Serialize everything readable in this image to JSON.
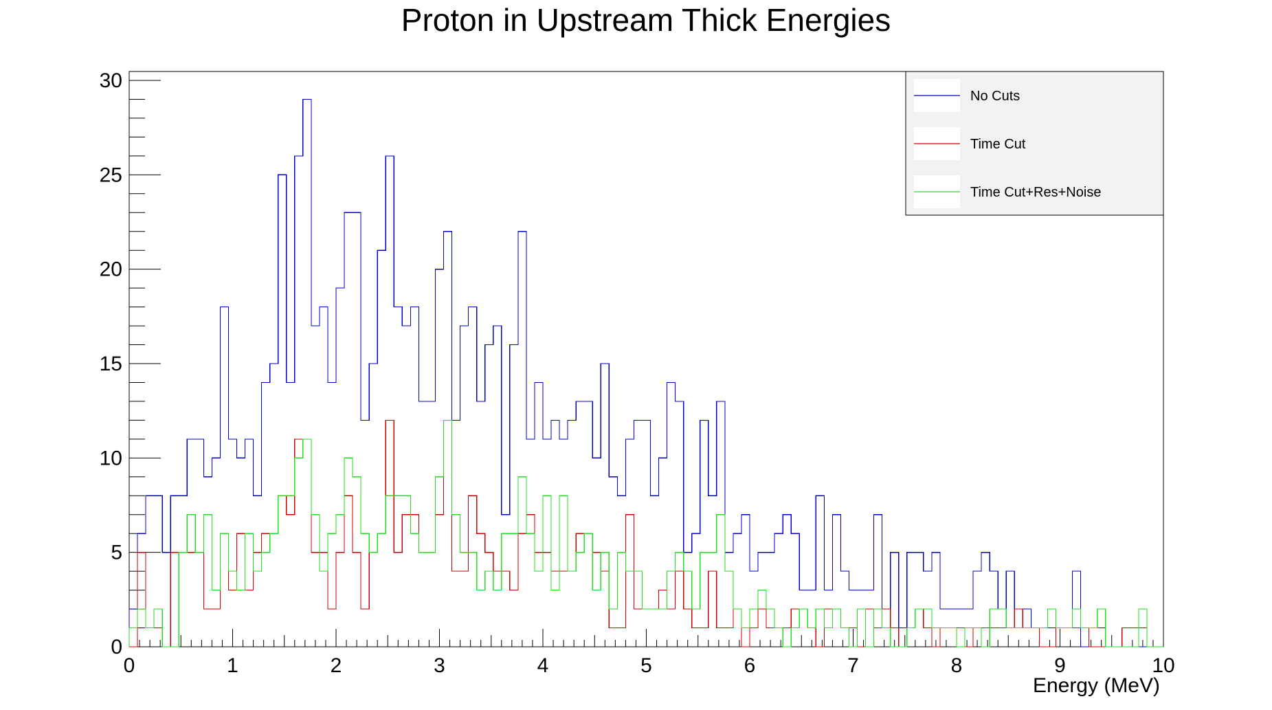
{
  "chart_data": {
    "type": "histogram",
    "title": "Proton in Upstream Thick Energies",
    "xlabel": "Energy (MeV)",
    "ylabel": "",
    "xlim": [
      0,
      10
    ],
    "ylim": [
      0,
      30
    ],
    "bin_width": 0.08,
    "x_ticks": [
      "0",
      "1",
      "2",
      "3",
      "4",
      "5",
      "6",
      "7",
      "8",
      "9",
      "10"
    ],
    "y_ticks": [
      "0",
      "5",
      "10",
      "15",
      "20",
      "25",
      "30"
    ],
    "grid": false,
    "legend_position": "top-right",
    "series": [
      {
        "name": "No Cuts",
        "color": "#0000cc",
        "values": [
          2,
          6,
          8,
          8,
          5,
          8,
          8,
          11,
          11,
          9,
          10,
          18,
          11,
          10,
          11,
          8,
          14,
          15,
          25,
          14,
          26,
          29,
          17,
          18,
          14,
          19,
          23,
          23,
          12,
          15,
          21,
          26,
          18,
          17,
          18,
          13,
          13,
          20,
          22,
          12,
          17,
          18,
          13,
          16,
          17,
          7,
          16,
          22,
          11,
          14,
          11,
          12,
          11,
          12,
          13,
          13,
          10,
          15,
          9,
          8,
          11,
          12,
          12,
          8,
          10,
          14,
          13,
          5,
          6,
          12,
          8,
          13,
          5,
          6,
          7,
          4,
          5,
          5,
          6,
          7,
          6,
          3,
          3,
          8,
          3,
          7,
          4,
          3,
          3,
          3,
          7,
          1,
          5,
          1,
          5,
          5,
          4,
          5,
          2,
          2,
          2,
          2,
          4,
          5,
          4,
          2,
          4,
          2,
          2,
          1,
          1,
          1,
          1,
          1,
          4,
          0,
          1,
          1,
          0,
          0,
          1,
          1,
          0,
          0,
          0
        ]
      },
      {
        "name": "Time Cut",
        "color": "#cc0000",
        "values": [
          0,
          5,
          1,
          1,
          0,
          5,
          5,
          5,
          5,
          2,
          2,
          6,
          3,
          6,
          3,
          5,
          6,
          6,
          8,
          7,
          11,
          11,
          5,
          5,
          2,
          5,
          8,
          5,
          2,
          5,
          6,
          12,
          5,
          7,
          7,
          5,
          5,
          7,
          12,
          4,
          4,
          8,
          6,
          5,
          4,
          4,
          3,
          6,
          7,
          5,
          5,
          4,
          4,
          4,
          6,
          6,
          5,
          4,
          1,
          1,
          7,
          2,
          2,
          2,
          3,
          2,
          4,
          2,
          1,
          1,
          4,
          1,
          1,
          2,
          0,
          1,
          2,
          1,
          1,
          1,
          2,
          2,
          1,
          0,
          2,
          2,
          1,
          1,
          0,
          2,
          1,
          2,
          1,
          0,
          1,
          2,
          1,
          0,
          1,
          1,
          1,
          0,
          1,
          1,
          1,
          1,
          1,
          2,
          1,
          1,
          0,
          0,
          1,
          1,
          1,
          1,
          0,
          0,
          0,
          0,
          1,
          1,
          1,
          0,
          0
        ]
      },
      {
        "name": "Time Cut+Res+Noise",
        "color": "#22dd22",
        "values": [
          1,
          2,
          1,
          2,
          0,
          0,
          5,
          7,
          5,
          7,
          3,
          6,
          4,
          3,
          6,
          4,
          5,
          6,
          8,
          8,
          10,
          11,
          7,
          4,
          6,
          7,
          10,
          9,
          6,
          5,
          6,
          8,
          8,
          8,
          6,
          5,
          5,
          9,
          12,
          7,
          5,
          5,
          3,
          4,
          3,
          6,
          6,
          9,
          6,
          4,
          8,
          3,
          8,
          4,
          5,
          6,
          3,
          5,
          2,
          5,
          4,
          4,
          2,
          2,
          2,
          4,
          5,
          4,
          2,
          5,
          5,
          7,
          4,
          2,
          1,
          2,
          3,
          2,
          1,
          0,
          1,
          2,
          1,
          2,
          1,
          2,
          1,
          0,
          2,
          0,
          2,
          1,
          0,
          0,
          1,
          2,
          2,
          1,
          1,
          1,
          0,
          1,
          1,
          0,
          2,
          2,
          1,
          1,
          1,
          1,
          1,
          2,
          1,
          1,
          2,
          1,
          1,
          2,
          0,
          0,
          0,
          0,
          2,
          0,
          0
        ]
      }
    ]
  }
}
